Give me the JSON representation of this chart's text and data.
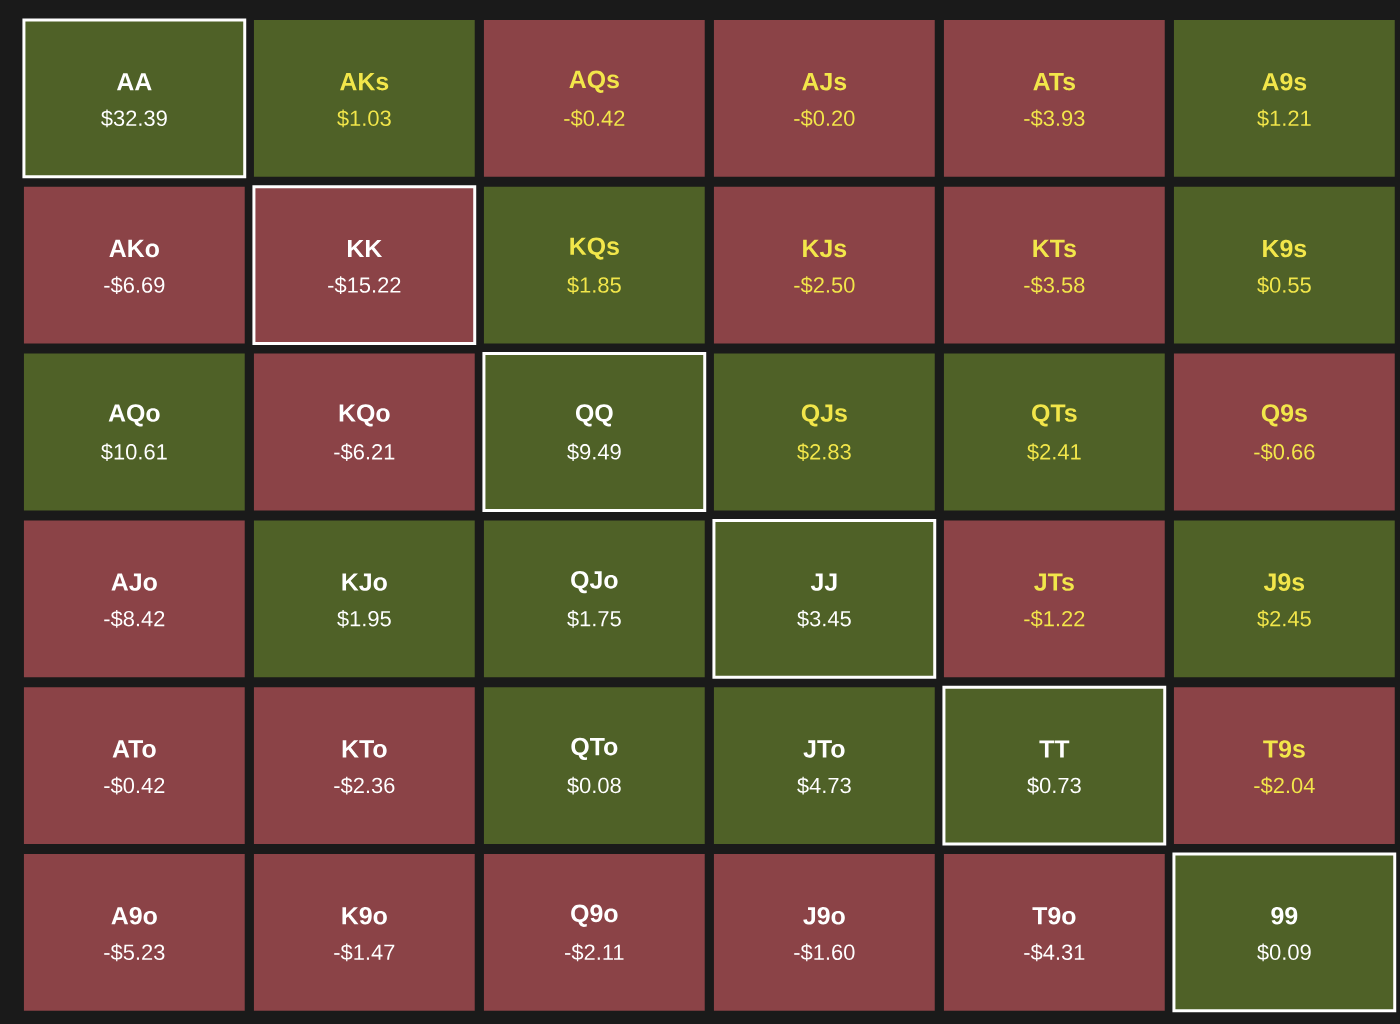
{
  "chart_data": {
    "type": "heatmap",
    "categories": [
      null,
      null,
      null,
      null,
      null,
      null
    ],
    "y_categories": [
      null,
      null,
      null,
      null,
      null,
      null
    ],
    "colors": [
      "#8b4347",
      "#4f6127"
    ],
    "cells": [
      [
        32.39,
        1.03,
        -0.42,
        -0.2,
        -3.93,
        1.21
      ],
      [
        -6.69,
        -15.22,
        1.85,
        -2.5,
        -3.58,
        0.55
      ],
      [
        10.61,
        -6.21,
        9.49,
        2.83,
        2.41,
        -0.66
      ],
      [
        -8.42,
        1.95,
        1.75,
        3.45,
        -1.22,
        2.45
      ],
      [
        -0.42,
        -2.36,
        0.08,
        4.73,
        0.73,
        -2.04
      ],
      [
        -5.23,
        -1.47,
        -2.11,
        -1.6,
        -4.31,
        0.09
      ]
    ],
    "cell_labels": [
      [
        "$32.39",
        "$1.03",
        "-$0.42",
        "-$0.20",
        "-$3.93",
        "$1.21"
      ],
      [
        "-$6.69",
        "-$15.22",
        "$1.85",
        "-$2.50",
        "-$3.58",
        "$0.55"
      ],
      [
        "$10.61",
        "-$6.21",
        "$9.49",
        "$2.83",
        "$2.41",
        "-$0.66"
      ],
      [
        "-$8.42",
        "$1.95",
        "$1.75",
        "$3.45",
        "-$1.22",
        "$2.45"
      ],
      [
        "-$0.42",
        "-$2.36",
        "$0.08",
        "$4.73",
        "$0.73",
        "-$2.04"
      ],
      [
        "-$5.23",
        "-$1.47",
        "-$2.11",
        "-$1.60",
        "-$4.31",
        "$0.09"
      ]
    ],
    "annotations": [
      "AA",
      "AKs",
      "AQs",
      "AJs",
      "ATs",
      "A9s",
      "AKo",
      "KK",
      "KQs",
      "KJs",
      "KTs",
      "K9s",
      "AQo",
      "KQo",
      "QQ",
      "QJs",
      "QTs",
      "Q9s",
      "AJo",
      "KJo",
      "QJo",
      "JJ",
      "JTs",
      "J9s",
      "ATo",
      "KTo",
      "QTo",
      "JTo",
      "TT",
      "T9s",
      "A9o",
      "K9o",
      "Q9o",
      "J9o",
      "T9o",
      "99"
    ]
  }
}
